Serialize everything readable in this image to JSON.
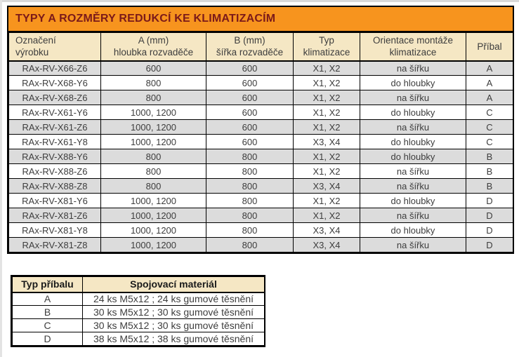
{
  "title_bar": {
    "text": "TYPY A ROZMĚRY REDUKCÍ KE KLIMATIZACÍM"
  },
  "main_table": {
    "columns": [
      {
        "label": "Označení\nvýrobku"
      },
      {
        "label": "A (mm)\nhloubka rozvaděče"
      },
      {
        "label": "B (mm)\nšířka rozvaděče"
      },
      {
        "label": "Typ\nklimatizace"
      },
      {
        "label": "Orientace montáže\nklimatizace"
      },
      {
        "label": "Příbal"
      }
    ],
    "rows": [
      [
        "RAx-RV-X66-Z6",
        "600",
        "600",
        "X1, X2",
        "na šířku",
        "A"
      ],
      [
        "RAx-RV-X68-Y6",
        "800",
        "600",
        "X1, X2",
        "do hloubky",
        "A"
      ],
      [
        "RAx-RV-X68-Z6",
        "800",
        "600",
        "X1, X2",
        "na šířku",
        "A"
      ],
      [
        "RAx-RV-X61-Y6",
        "1000, 1200",
        "600",
        "X1, X2",
        "do hloubky",
        "C"
      ],
      [
        "RAx-RV-X61-Z6",
        "1000, 1200",
        "600",
        "X1, X2",
        "na šířku",
        "C"
      ],
      [
        "RAx-RV-X61-Y8",
        "1000, 1200",
        "600",
        "X3, X4",
        "do hloubky",
        "C"
      ],
      [
        "RAx-RV-X88-Y6",
        "800",
        "800",
        "X1, X2",
        "do hloubky",
        "B"
      ],
      [
        "RAx-RV-X88-Z6",
        "800",
        "800",
        "X1, X2",
        "na šířku",
        "B"
      ],
      [
        "RAx-RV-X88-Z8",
        "800",
        "800",
        "X3, X4",
        "na šířku",
        "B"
      ],
      [
        "RAx-RV-X81-Y6",
        "1000, 1200",
        "800",
        "X1, X2",
        "do hloubky",
        "D"
      ],
      [
        "RAx-RV-X81-Z6",
        "1000, 1200",
        "800",
        "X1, X2",
        "na šířku",
        "D"
      ],
      [
        "RAx-RV-X81-Y8",
        "1000, 1200",
        "800",
        "X3, X4",
        "do hloubky",
        "D"
      ],
      [
        "RAx-RV-X81-Z8",
        "1000, 1200",
        "800",
        "X3, X4",
        "na šířku",
        "D"
      ]
    ]
  },
  "accessory_table": {
    "columns": [
      {
        "label": "Typ příbalu"
      },
      {
        "label": "Spojovací materiál"
      }
    ],
    "rows": [
      [
        "A",
        "24 ks M5x12 ; 24 ks gumové těsnění"
      ],
      [
        "B",
        "30 ks M5x12 ; 30 ks gumové těsnění"
      ],
      [
        "C",
        "30 ks M5x12 ; 30 ks gumové těsnění"
      ],
      [
        "D",
        "38 ks M5x12 ; 38 ks gumové těsnění"
      ]
    ]
  },
  "colors": {
    "title_background": "#f7941e",
    "title_text": "#7b1a1a",
    "header_background": "#f5e7c4",
    "row_stripe": "#dcdcdc",
    "row_plain": "#ffffff",
    "border": "#000000",
    "body_text": "#3d3d3d"
  }
}
